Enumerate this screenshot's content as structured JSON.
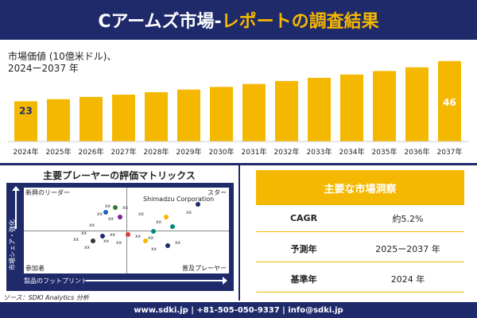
{
  "header": {
    "title_part1": "Cアームズ市場-",
    "title_part2": "レポートの調査結果"
  },
  "chart_data": {
    "type": "bar",
    "title": "",
    "ylabel_line1": "市場価値 (10億米ドル)、",
    "ylabel_line2": "2024ー2037 年",
    "categories": [
      "2024年",
      "2025年",
      "2026年",
      "2027年",
      "2028年",
      "2029年",
      "2030年",
      "2031年",
      "2032年",
      "2033年",
      "2034年",
      "2035年",
      "2036年",
      "2037年"
    ],
    "values": [
      23,
      24.2,
      25.5,
      26.8,
      28.2,
      29.7,
      31.2,
      32.9,
      34.6,
      36.4,
      38.3,
      40.3,
      42.4,
      46
    ],
    "data_labels": {
      "first": "23",
      "last": "46"
    },
    "bar_color": "#f5b800",
    "ylim": [
      0,
      50
    ]
  },
  "matrix": {
    "title": "主要プレーヤーの評価マトリックス",
    "q_top_left": "新興のリーダー",
    "q_top_right": "スター",
    "q_bottom_left": "参加者",
    "q_bottom_right": "普及プレーヤー",
    "x_axis": "製品のフットプリント",
    "y_axis": "市場シェア・強化",
    "company": "Shimadzu Corporation",
    "marker_text": "xx"
  },
  "source": "ソース：SDKI Analytics 分析",
  "insights": {
    "title": "主要な市場洞察",
    "rows": [
      {
        "key": "CAGR",
        "value": "約5.2%"
      },
      {
        "key": "予測年",
        "value": "2025ー2037 年"
      },
      {
        "key": "基準年",
        "value": "2024 年"
      }
    ]
  },
  "footer": "www.sdki.jp | +81-505-050-9337 | info@sdki.jp"
}
